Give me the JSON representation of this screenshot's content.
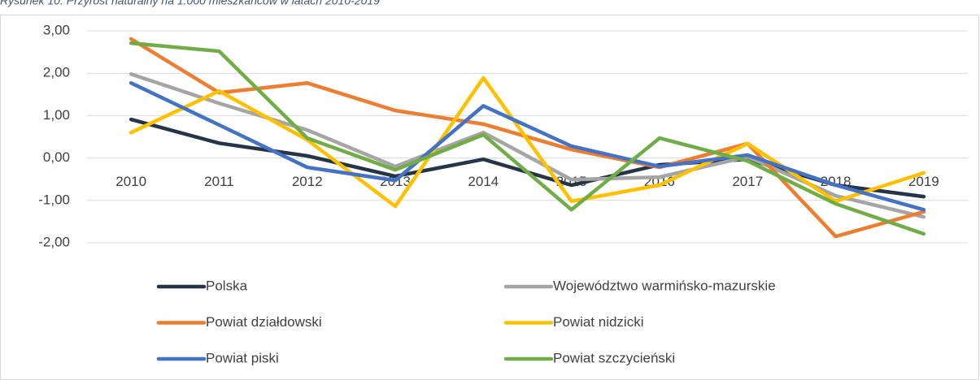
{
  "chart_data": {
    "type": "line",
    "title": "Rysunek 10. Przyrost naturalny na 1.000 mieszkańców w latach 2010-2019",
    "categories": [
      "2010",
      "2011",
      "2012",
      "2013",
      "2014",
      "2015",
      "2016",
      "2017",
      "2018",
      "2019"
    ],
    "series": [
      {
        "name": "Polska",
        "color": "#253547",
        "values": [
          0.91,
          0.35,
          0.05,
          -0.43,
          -0.03,
          -0.64,
          -0.16,
          -0.03,
          -0.64,
          -0.91
        ]
      },
      {
        "name": "Województwo warmińsko-mazurskie",
        "color": "#a5a5a5",
        "values": [
          1.98,
          1.29,
          0.66,
          -0.2,
          0.6,
          -0.51,
          -0.45,
          0.03,
          -0.89,
          -1.39
        ]
      },
      {
        "name": "Powiat działdowski",
        "color": "#ed7d31",
        "values": [
          2.81,
          1.54,
          1.77,
          1.12,
          0.8,
          0.2,
          -0.22,
          0.34,
          -1.85,
          -1.27
        ]
      },
      {
        "name": "Powiat nidzicki",
        "color": "#ffc000",
        "values": [
          0.6,
          1.58,
          0.43,
          -1.14,
          1.89,
          -1.02,
          -0.64,
          0.34,
          -1.02,
          -0.35
        ]
      },
      {
        "name": "Powiat piski",
        "color": "#4472c4",
        "values": [
          1.77,
          0.78,
          -0.22,
          -0.53,
          1.23,
          0.28,
          -0.2,
          0.07,
          -0.64,
          -1.22
        ]
      },
      {
        "name": "Powiat szczycieński",
        "color": "#70ad47",
        "values": [
          2.71,
          2.52,
          0.47,
          -0.28,
          0.55,
          -1.22,
          0.47,
          -0.07,
          -1.08,
          -1.79
        ]
      }
    ],
    "ylim": [
      -2,
      3
    ],
    "yticks": [
      {
        "value": -2,
        "label": "-2,00"
      },
      {
        "value": -1,
        "label": "-1,00"
      },
      {
        "value": 0,
        "label": "0,00"
      },
      {
        "value": 1,
        "label": "1,00"
      },
      {
        "value": 2,
        "label": "2,00"
      },
      {
        "value": 3,
        "label": "3,00"
      }
    ],
    "grid": true
  }
}
